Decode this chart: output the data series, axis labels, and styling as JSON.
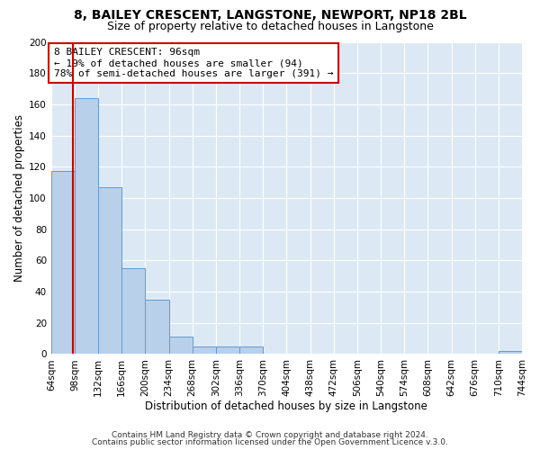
{
  "title": "8, BAILEY CRESCENT, LANGSTONE, NEWPORT, NP18 2BL",
  "subtitle": "Size of property relative to detached houses in Langstone",
  "xlabel": "Distribution of detached houses by size in Langstone",
  "ylabel": "Number of detached properties",
  "bar_edges": [
    64,
    98,
    132,
    166,
    200,
    234,
    268,
    302,
    336,
    370,
    404,
    438,
    472,
    506,
    540,
    574,
    608,
    642,
    676,
    710,
    744
  ],
  "bar_heights": [
    117,
    164,
    107,
    55,
    35,
    11,
    5,
    5,
    5,
    0,
    0,
    0,
    0,
    0,
    0,
    0,
    0,
    0,
    0,
    2
  ],
  "bar_color": "#b8d0ea",
  "bar_edge_color": "#6699cc",
  "property_line_x": 96,
  "property_line_color": "#cc0000",
  "annotation_text": "8 BAILEY CRESCENT: 96sqm\n← 19% of detached houses are smaller (94)\n78% of semi-detached houses are larger (391) →",
  "annotation_box_color": "#ffffff",
  "annotation_box_edge_color": "#cc0000",
  "ylim": [
    0,
    200
  ],
  "yticks": [
    0,
    20,
    40,
    60,
    80,
    100,
    120,
    140,
    160,
    180,
    200
  ],
  "tick_labels": [
    "64sqm",
    "98sqm",
    "132sqm",
    "166sqm",
    "200sqm",
    "234sqm",
    "268sqm",
    "302sqm",
    "336sqm",
    "370sqm",
    "404sqm",
    "438sqm",
    "472sqm",
    "506sqm",
    "540sqm",
    "574sqm",
    "608sqm",
    "642sqm",
    "676sqm",
    "710sqm",
    "744sqm"
  ],
  "footer_line1": "Contains HM Land Registry data © Crown copyright and database right 2024.",
  "footer_line2": "Contains public sector information licensed under the Open Government Licence v.3.0.",
  "plot_bg_color": "#dce9f5",
  "title_fontsize": 10,
  "subtitle_fontsize": 9,
  "axis_label_fontsize": 8.5,
  "tick_fontsize": 7.5,
  "annotation_fontsize": 8,
  "footer_fontsize": 6.5
}
